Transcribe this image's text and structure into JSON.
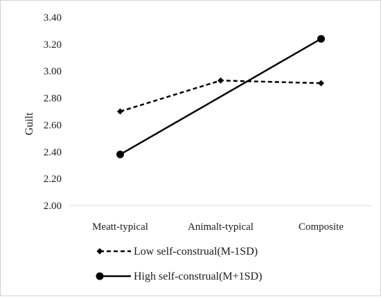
{
  "chart_data": {
    "type": "line",
    "title": "",
    "xlabel": "",
    "ylabel": "Guilt",
    "categories": [
      "Meatt-typical",
      "Animalt-typical",
      "Composite"
    ],
    "ylim": [
      2.0,
      3.4
    ],
    "yticks": [
      2.0,
      2.2,
      2.4,
      2.6,
      2.8,
      3.0,
      3.2,
      3.4
    ],
    "ytick_labels": [
      "2.00",
      "2.20",
      "2.40",
      "2.60",
      "2.80",
      "3.00",
      "3.20",
      "3.40"
    ],
    "grid": false,
    "legend_position": "bottom",
    "series": [
      {
        "name": "Low self-construal(M-1SD)",
        "values": [
          2.7,
          2.93,
          2.91
        ],
        "line_style": "dashed",
        "marker": "diamond",
        "color": "#000000"
      },
      {
        "name": "High self-construal(M+1SD)",
        "values": [
          2.38,
          null,
          3.24
        ],
        "line_style": "solid",
        "marker": "circle",
        "color": "#000000"
      }
    ]
  }
}
